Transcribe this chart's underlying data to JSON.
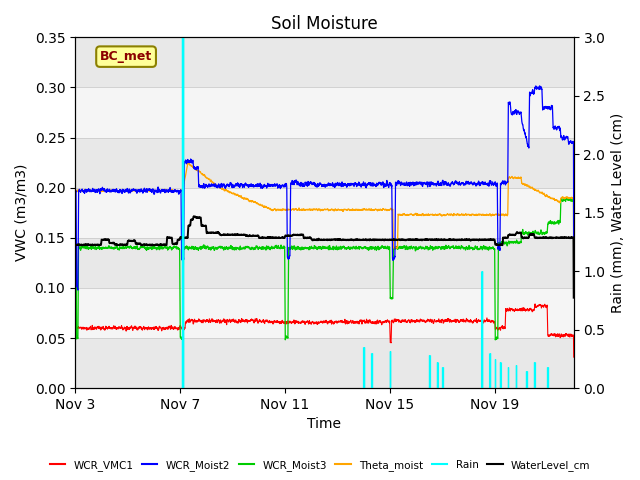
{
  "title": "Soil Moisture",
  "xlabel": "Time",
  "ylabel_left": "VWC (m3/m3)",
  "ylabel_right": "Rain (mm), Water Level (cm)",
  "ylim_left": [
    0.0,
    0.35
  ],
  "ylim_right": [
    0.0,
    3.0
  ],
  "annotation_text": "BC_met",
  "annotation_color": "#8B0000",
  "annotation_bg": "#FFFF99",
  "annotation_edge": "#8B8000",
  "x_tick_labels": [
    "Nov 3",
    "Nov 7",
    "Nov 11",
    "Nov 15",
    "Nov 19"
  ],
  "x_tick_positions": [
    0,
    4,
    8,
    12,
    16
  ],
  "legend_entries": [
    "WCR_VMC1",
    "WCR_Moist2",
    "WCR_Moist3",
    "Theta_moist",
    "Rain",
    "WaterLevel_cm"
  ],
  "legend_colors": [
    "#FF0000",
    "#0000FF",
    "#00CC00",
    "#FFA500",
    "#00FFFF",
    "#000000"
  ],
  "band_colors": [
    "#E8E8E8",
    "#F5F5F5"
  ],
  "band_edges": [
    0.0,
    0.05,
    0.1,
    0.15,
    0.2,
    0.25,
    0.3,
    0.35
  ],
  "grid_color": "#CCCCCC",
  "bg_color": "#FFFFFF",
  "colors": {
    "WCR_VMC1": "#FF0000",
    "WCR_Moist2": "#0000FF",
    "WCR_Moist3": "#00CC00",
    "Theta_moist": "#FFA500",
    "Rain": "#00FFFF",
    "WaterLevel_cm": "#000000"
  }
}
